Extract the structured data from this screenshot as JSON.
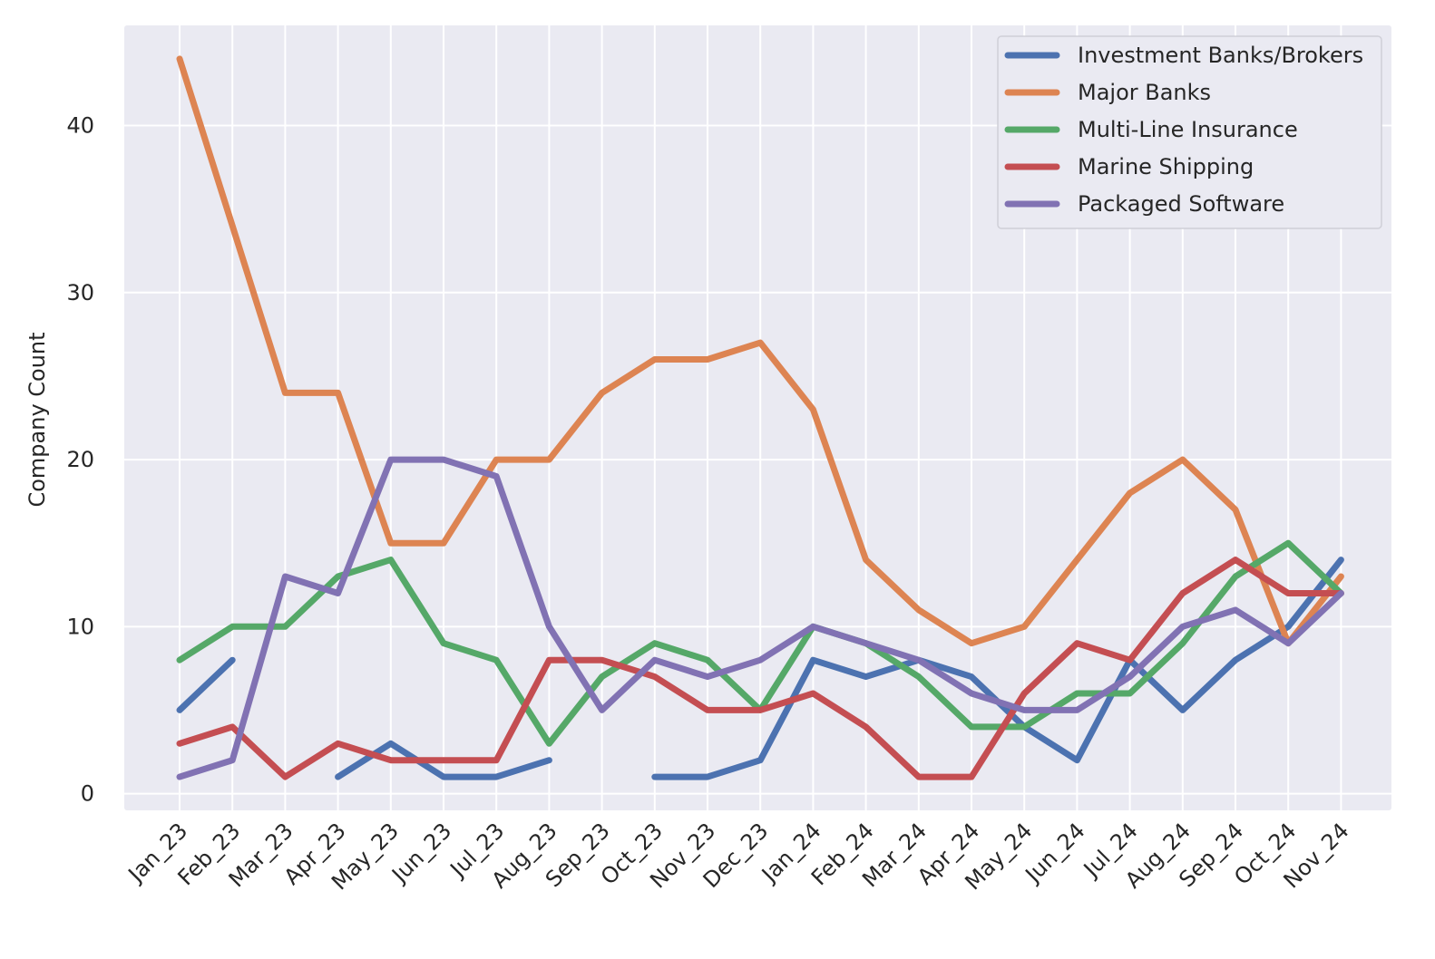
{
  "chart_data": {
    "type": "line",
    "title": "",
    "xlabel": "",
    "ylabel": "Company Count",
    "ylim": [
      -1,
      46
    ],
    "yticks": [
      0,
      10,
      20,
      30,
      40
    ],
    "grid": true,
    "legend_position": "top-right",
    "categories": [
      "Jan_23",
      "Feb_23",
      "Mar_23",
      "Apr_23",
      "May_23",
      "Jun_23",
      "Jul_23",
      "Aug_23",
      "Sep_23",
      "Oct_23",
      "Nov_23",
      "Dec_23",
      "Jan_24",
      "Feb_24",
      "Mar_24",
      "Apr_24",
      "May_24",
      "Jun_24",
      "Jul_24",
      "Aug_24",
      "Sep_24",
      "Oct_24",
      "Nov_24"
    ],
    "series": [
      {
        "name": "Investment Banks/Brokers",
        "color": "#4c72b0",
        "values": [
          5,
          8,
          null,
          1,
          3,
          1,
          1,
          2,
          null,
          1,
          1,
          2,
          8,
          7,
          8,
          7,
          4,
          2,
          8,
          5,
          8,
          10,
          14
        ]
      },
      {
        "name": "Major Banks",
        "color": "#dd8452",
        "values": [
          44,
          34,
          24,
          24,
          15,
          15,
          20,
          20,
          24,
          26,
          26,
          27,
          23,
          14,
          11,
          9,
          10,
          14,
          18,
          20,
          17,
          9,
          13
        ]
      },
      {
        "name": "Multi-Line Insurance",
        "color": "#55a868",
        "values": [
          8,
          10,
          10,
          13,
          14,
          9,
          8,
          3,
          7,
          9,
          8,
          5,
          10,
          9,
          7,
          4,
          4,
          6,
          6,
          9,
          13,
          15,
          12
        ]
      },
      {
        "name": "Marine Shipping",
        "color": "#c44e52",
        "values": [
          3,
          4,
          1,
          3,
          2,
          2,
          2,
          8,
          8,
          7,
          5,
          5,
          6,
          4,
          1,
          1,
          6,
          9,
          8,
          12,
          14,
          12,
          12
        ]
      },
      {
        "name": "Packaged Software",
        "color": "#8172b3",
        "values": [
          1,
          2,
          13,
          12,
          20,
          20,
          19,
          10,
          5,
          8,
          7,
          8,
          10,
          9,
          8,
          6,
          5,
          5,
          7,
          10,
          11,
          9,
          12
        ]
      }
    ]
  },
  "colors": {
    "plot_background": "#eaeaf2",
    "grid": "#ffffff",
    "legend_background": "#eaeaf2"
  }
}
